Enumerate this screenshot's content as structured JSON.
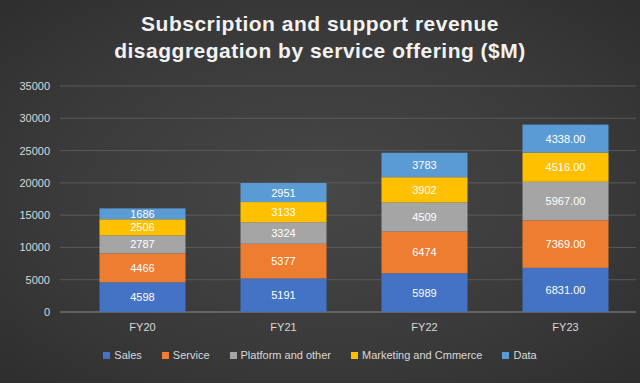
{
  "chart_data": {
    "type": "bar",
    "title": "Subscription and support revenue disaggregation by service offering ($M)",
    "categories": [
      "FY20",
      "FY21",
      "FY22",
      "FY23"
    ],
    "series": [
      {
        "name": "Sales",
        "color": "#4472c4",
        "values": [
          4598,
          5191,
          5989,
          6831
        ],
        "value_labels": [
          "4598",
          "5191",
          "5989",
          "6831.00"
        ]
      },
      {
        "name": "Service",
        "color": "#ed7d31",
        "values": [
          4466,
          5377,
          6474,
          7369
        ],
        "value_labels": [
          "4466",
          "5377",
          "6474",
          "7369.00"
        ]
      },
      {
        "name": "Platform and other",
        "color": "#a5a5a5",
        "values": [
          2787,
          3324,
          4509,
          5967
        ],
        "value_labels": [
          "2787",
          "3324",
          "4509",
          "5967.00"
        ]
      },
      {
        "name": "Marketing and Cmmerce",
        "color": "#ffc000",
        "values": [
          2506,
          3133,
          3902,
          4516
        ],
        "value_labels": [
          "2506",
          "3133",
          "3902",
          "4516.00"
        ]
      },
      {
        "name": "Data",
        "color": "#5b9bd5",
        "values": [
          1686,
          2951,
          3783,
          4338
        ],
        "value_labels": [
          "1686",
          "2951",
          "3783",
          "4338.00"
        ]
      }
    ],
    "ylim": [
      0,
      35000
    ],
    "yticks": [
      0,
      5000,
      10000,
      15000,
      20000,
      25000,
      30000,
      35000
    ],
    "grid": true,
    "stacked": true,
    "data_labels": true,
    "legend": "bottom"
  }
}
